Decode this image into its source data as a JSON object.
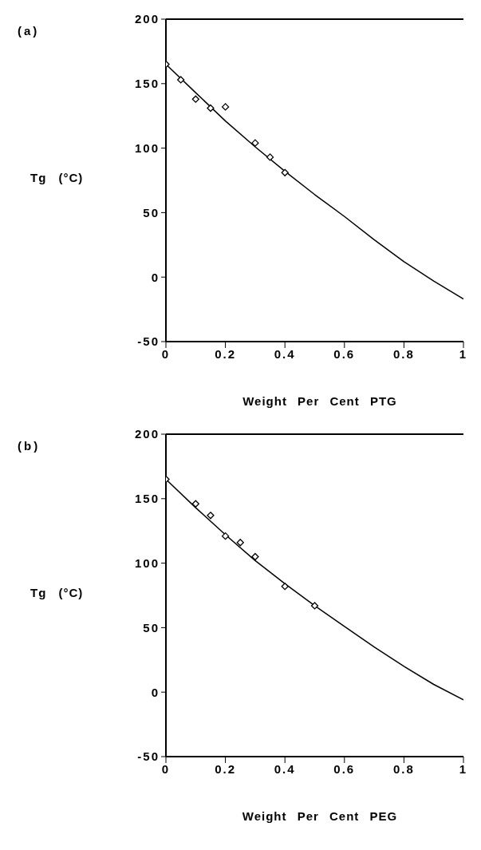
{
  "chart_data": [
    {
      "type": "scatter",
      "annotations": [
        "(a)"
      ],
      "xlabel": "Weight Per Cent PTG",
      "ylabel": "Tg (°C)",
      "xlim": [
        0,
        1
      ],
      "ylim": [
        -50,
        200
      ],
      "xticks": [
        0,
        0.2,
        0.4,
        0.6,
        0.8,
        1
      ],
      "yticks": [
        -50,
        0,
        50,
        100,
        150,
        200
      ],
      "grid": false,
      "legend": false,
      "series": [
        {
          "type": "scatter",
          "marker": "diamond",
          "color": "#000000",
          "x": [
            0,
            0.05,
            0.1,
            0.15,
            0.2,
            0.3,
            0.35,
            0.4
          ],
          "values": [
            165,
            153,
            138,
            131,
            132,
            104,
            93,
            81
          ]
        },
        {
          "type": "line",
          "line_style": "solid",
          "color": "#000000",
          "x": [
            0,
            0.1,
            0.2,
            0.3,
            0.4,
            0.5,
            0.6,
            0.7,
            0.8,
            0.9,
            1
          ],
          "values": [
            165,
            143,
            121,
            101,
            82,
            64,
            47,
            29,
            12,
            -3,
            -17
          ]
        }
      ]
    },
    {
      "type": "scatter",
      "annotations": [
        "(b)"
      ],
      "xlabel": "Weight Per Cent PEG",
      "ylabel": "Tg (°C)",
      "xlim": [
        0,
        1
      ],
      "ylim": [
        -50,
        200
      ],
      "xticks": [
        0,
        0.2,
        0.4,
        0.6,
        0.8,
        1
      ],
      "yticks": [
        -50,
        0,
        50,
        100,
        150,
        200
      ],
      "grid": false,
      "legend": false,
      "series": [
        {
          "type": "scatter",
          "marker": "diamond",
          "color": "#000000",
          "x": [
            0,
            0.1,
            0.15,
            0.2,
            0.25,
            0.3,
            0.4,
            0.5
          ],
          "values": [
            165,
            146,
            137,
            121,
            116,
            105,
            82,
            67
          ]
        },
        {
          "type": "line",
          "line_style": "solid",
          "color": "#000000",
          "x": [
            0,
            0.1,
            0.2,
            0.3,
            0.4,
            0.5,
            0.6,
            0.7,
            0.8,
            0.9,
            1
          ],
          "values": [
            165,
            143,
            122,
            102,
            84,
            67,
            51,
            35,
            20,
            6,
            -6
          ]
        }
      ]
    }
  ]
}
